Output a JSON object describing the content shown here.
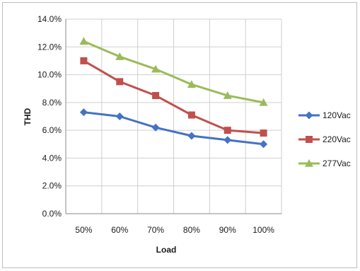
{
  "chart_data": {
    "type": "line",
    "categories": [
      "50%",
      "60%",
      "70%",
      "80%",
      "90%",
      "100%"
    ],
    "xlabel": "Load",
    "ylabel": "THD",
    "ylim": [
      0,
      14
    ],
    "y_ticks": [
      "0.0%",
      "2.0%",
      "4.0%",
      "6.0%",
      "8.0%",
      "10.0%",
      "12.0%",
      "14.0%"
    ],
    "grid": true,
    "legend_position": "right",
    "series": [
      {
        "name": "120Vac",
        "color": "#4472C4",
        "marker": "diamond",
        "values": [
          7.3,
          7.0,
          6.2,
          5.6,
          5.3,
          5.0
        ]
      },
      {
        "name": "220Vac",
        "color": "#C0504D",
        "marker": "square",
        "values": [
          11.0,
          9.5,
          8.5,
          7.1,
          6.0,
          5.8
        ]
      },
      {
        "name": "277Vac",
        "color": "#9BBB59",
        "marker": "triangle",
        "values": [
          12.4,
          11.3,
          10.4,
          9.3,
          8.5,
          8.0
        ]
      }
    ]
  }
}
